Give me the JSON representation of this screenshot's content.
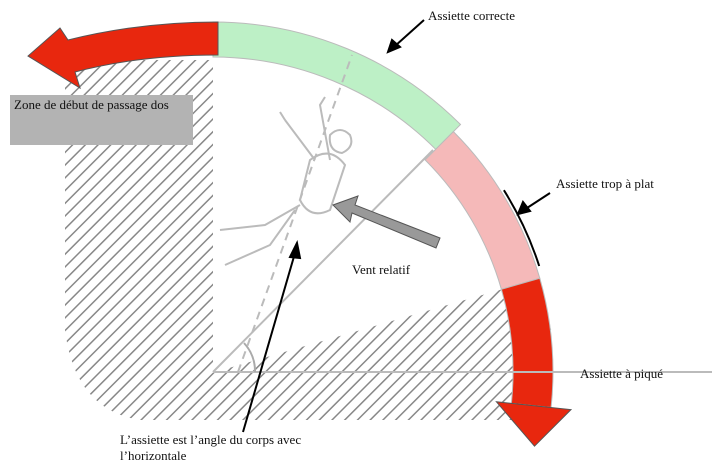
{
  "labels": {
    "correct": "Assiette correcte",
    "too_flat": "Assiette trop à plat",
    "relative_wind": "Vent relatif",
    "dive": "Assiette à piqué",
    "definition": "L’assiette est l’angle du corps avec l’horizontale",
    "back_zone": "Zone de début de passage dos"
  }
}
